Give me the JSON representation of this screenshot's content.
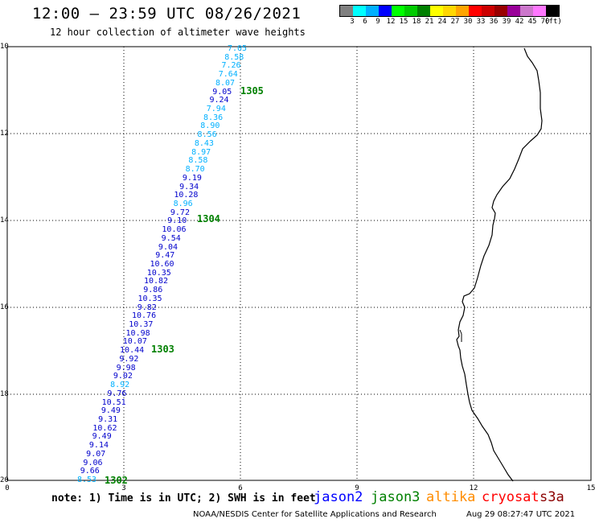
{
  "header": {
    "title": "12:00 – 23:59 UTC 08/26/2021",
    "subtitle": "12 hour collection of altimeter wave heights"
  },
  "colorbar": {
    "colors": [
      "#808080",
      "#00ffff",
      "#00b0ff",
      "#0000ff",
      "#00ff00",
      "#00cc00",
      "#008000",
      "#ffff00",
      "#ffd700",
      "#ffa500",
      "#ff0000",
      "#cc0000",
      "#990000",
      "#990099",
      "#cc77cc",
      "#ff77ff",
      "#000000"
    ],
    "labels": [
      "3",
      "6",
      "9",
      "12",
      "15",
      "18",
      "21",
      "24",
      "27",
      "30",
      "33",
      "36",
      "39",
      "42",
      "45",
      "70",
      "(ft)"
    ]
  },
  "axes": {
    "x_ticks": [
      "0",
      "3",
      "6",
      "9",
      "12",
      "15"
    ],
    "y_ticks": [
      "10",
      "12",
      "14",
      "16",
      "18",
      "20"
    ]
  },
  "track": {
    "measurements": [
      {
        "v": "7.05",
        "c": "#00b0ff"
      },
      {
        "v": "8.58",
        "c": "#00b0ff"
      },
      {
        "v": "7.26",
        "c": "#00b0ff"
      },
      {
        "v": "7.64",
        "c": "#00b0ff"
      },
      {
        "v": "8.07",
        "c": "#00b0ff"
      },
      {
        "v": "9.05",
        "c": "#0000cc"
      },
      {
        "v": "9.24",
        "c": "#0000cc"
      },
      {
        "v": "7.94",
        "c": "#00b0ff"
      },
      {
        "v": "8.36",
        "c": "#00b0ff"
      },
      {
        "v": "8.90",
        "c": "#00b0ff"
      },
      {
        "v": "8.56",
        "c": "#00b0ff"
      },
      {
        "v": "8.43",
        "c": "#00b0ff"
      },
      {
        "v": "8.97",
        "c": "#00b0ff"
      },
      {
        "v": "8.58",
        "c": "#00b0ff"
      },
      {
        "v": "8.70",
        "c": "#00b0ff"
      },
      {
        "v": "9.19",
        "c": "#0000cc"
      },
      {
        "v": "9.34",
        "c": "#0000cc"
      },
      {
        "v": "10.28",
        "c": "#0000cc"
      },
      {
        "v": "8.96",
        "c": "#00b0ff"
      },
      {
        "v": "9.72",
        "c": "#0000cc"
      },
      {
        "v": "9.10",
        "c": "#0000cc"
      },
      {
        "v": "10.06",
        "c": "#0000cc"
      },
      {
        "v": "9.54",
        "c": "#0000cc"
      },
      {
        "v": "9.04",
        "c": "#0000cc"
      },
      {
        "v": "9.47",
        "c": "#0000cc"
      },
      {
        "v": "10.60",
        "c": "#0000cc"
      },
      {
        "v": "10.35",
        "c": "#0000cc"
      },
      {
        "v": "10.82",
        "c": "#0000cc"
      },
      {
        "v": "9.86",
        "c": "#0000cc"
      },
      {
        "v": "10.35",
        "c": "#0000cc"
      },
      {
        "v": "9.82",
        "c": "#0000cc"
      },
      {
        "v": "10.76",
        "c": "#0000cc"
      },
      {
        "v": "10.37",
        "c": "#0000cc"
      },
      {
        "v": "10.98",
        "c": "#0000cc"
      },
      {
        "v": "10.07",
        "c": "#0000cc"
      },
      {
        "v": "10.44",
        "c": "#0000cc"
      },
      {
        "v": "9.92",
        "c": "#0000cc"
      },
      {
        "v": "9.98",
        "c": "#0000cc"
      },
      {
        "v": "9.02",
        "c": "#0000cc"
      },
      {
        "v": "8.92",
        "c": "#00b0ff"
      },
      {
        "v": "9.76",
        "c": "#0000cc"
      },
      {
        "v": "10.51",
        "c": "#0000cc"
      },
      {
        "v": "9.49",
        "c": "#0000cc"
      },
      {
        "v": "9.31",
        "c": "#0000cc"
      },
      {
        "v": "10.62",
        "c": "#0000cc"
      },
      {
        "v": "9.49",
        "c": "#0000cc"
      },
      {
        "v": "9.14",
        "c": "#0000cc"
      },
      {
        "v": "9.07",
        "c": "#0000cc"
      },
      {
        "v": "9.06",
        "c": "#0000cc"
      },
      {
        "v": "9.66",
        "c": "#0000cc"
      },
      {
        "v": "8.53",
        "c": "#00b0ff"
      }
    ],
    "time_labels": [
      "1305",
      "1304",
      "1303",
      "1302"
    ]
  },
  "footer": {
    "note": "note: 1) Time is in UTC; 2) SWH is in feet",
    "satellites": [
      {
        "name": "jason2",
        "color": "#0000ff"
      },
      {
        "name": "jason3",
        "color": "#008000"
      },
      {
        "name": "altika",
        "color": "#ff8c00"
      },
      {
        "name": "cryosat",
        "color": "#ff0000"
      },
      {
        "name": "s3a",
        "color": "#8b0000"
      }
    ],
    "credit": "NOAA/NESDIS Center for Satellite Applications and Research",
    "timestamp": "Aug 29 08:27:47 UTC 2021"
  }
}
